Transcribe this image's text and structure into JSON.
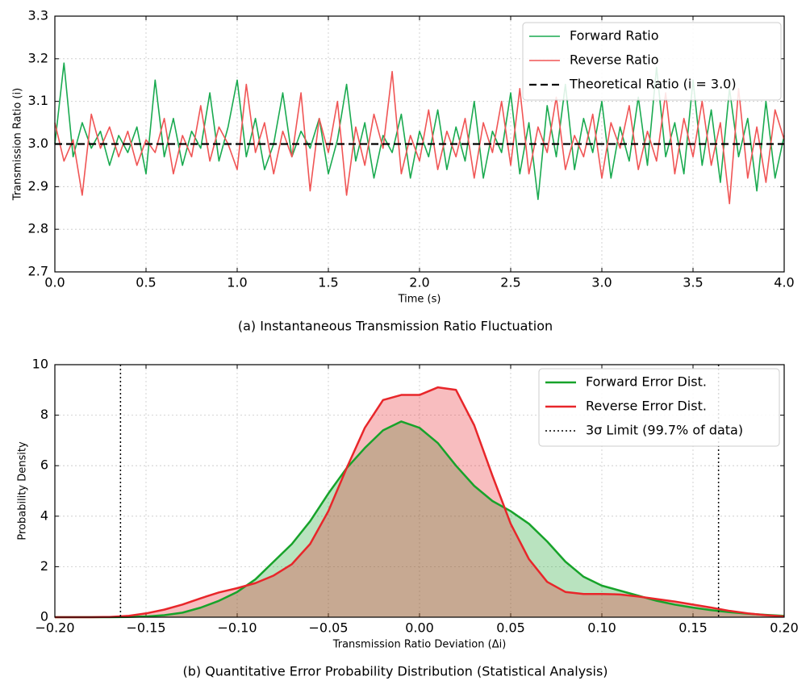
{
  "chart_data": [
    {
      "type": "line",
      "caption": "(a) Instantaneous Transmission Ratio Fluctuation",
      "xlabel": "Time (s)",
      "ylabel": "Transmission Ratio (i)",
      "xlim": [
        0,
        4
      ],
      "ylim": [
        2.7,
        3.3
      ],
      "xticks": [
        {
          "value": 0,
          "label": "0.0"
        },
        0.5,
        {
          "value": 1,
          "label": "1.0"
        },
        1.5,
        {
          "value": 2,
          "label": "2.0"
        },
        2.5,
        {
          "value": 3,
          "label": "3.0"
        },
        3.5,
        {
          "value": 4,
          "label": "4.0"
        }
      ],
      "yticks": [
        2.7,
        2.8,
        2.9,
        {
          "value": 3,
          "label": "3.0"
        },
        3.1,
        3.2,
        3.3
      ],
      "grid": true,
      "legend": "upper right",
      "x": [
        0,
        0.05,
        0.1,
        0.15,
        0.2,
        0.25,
        0.3,
        0.35,
        0.4,
        0.45,
        0.5,
        0.55,
        0.6,
        0.65,
        0.7,
        0.75,
        0.8,
        0.85,
        0.9,
        0.95,
        1,
        1.05,
        1.1,
        1.15,
        1.2,
        1.25,
        1.3,
        1.35,
        1.4,
        1.45,
        1.5,
        1.55,
        1.6,
        1.65,
        1.7,
        1.75,
        1.8,
        1.85,
        1.9,
        1.95,
        2,
        2.05,
        2.1,
        2.15,
        2.2,
        2.25,
        2.3,
        2.35,
        2.4,
        2.45,
        2.5,
        2.55,
        2.6,
        2.65,
        2.7,
        2.75,
        2.8,
        2.85,
        2.9,
        2.95,
        3,
        3.05,
        3.1,
        3.15,
        3.2,
        3.25,
        3.3,
        3.35,
        3.4,
        3.45,
        3.5,
        3.55,
        3.6,
        3.65,
        3.7,
        3.75,
        3.8,
        3.85,
        3.9,
        3.95,
        4
      ],
      "series": [
        {
          "name": "Forward Ratio",
          "color": "#1aaa50",
          "values": [
            3,
            3.19,
            2.97,
            3.05,
            2.99,
            3.03,
            2.95,
            3.02,
            2.98,
            3.04,
            2.93,
            3.15,
            2.97,
            3.06,
            2.95,
            3.03,
            2.99,
            3.12,
            2.96,
            3.04,
            3.15,
            2.97,
            3.06,
            2.94,
            3,
            3.12,
            2.97,
            3.03,
            2.99,
            3.06,
            2.93,
            3.01,
            3.14,
            2.96,
            3.05,
            2.92,
            3.02,
            2.98,
            3.07,
            2.92,
            3.03,
            2.97,
            3.08,
            2.94,
            3.04,
            2.96,
            3.1,
            2.92,
            3.03,
            2.98,
            3.12,
            2.93,
            3.05,
            2.87,
            3.09,
            2.97,
            3.14,
            2.94,
            3.06,
            2.98,
            3.1,
            2.92,
            3.04,
            2.96,
            3.11,
            2.95,
            3.18,
            2.97,
            3.05,
            2.93,
            3.15,
            2.95,
            3.08,
            2.91,
            3.13,
            2.97,
            3.06,
            2.89,
            3.1,
            2.92,
            3.02
          ]
        },
        {
          "name": "Reverse Ratio",
          "color": "#f05555",
          "values": [
            3.05,
            2.96,
            3.01,
            2.88,
            3.07,
            2.99,
            3.04,
            2.97,
            3.03,
            2.95,
            3.01,
            2.98,
            3.06,
            2.93,
            3.02,
            2.97,
            3.09,
            2.96,
            3.04,
            3,
            2.94,
            3.14,
            2.98,
            3.05,
            2.93,
            3.03,
            2.97,
            3.12,
            2.89,
            3.06,
            2.98,
            3.1,
            2.88,
            3.04,
            2.95,
            3.07,
            2.99,
            3.17,
            2.93,
            3.02,
            2.96,
            3.08,
            2.94,
            3.03,
            2.97,
            3.06,
            2.92,
            3.05,
            2.98,
            3.1,
            2.95,
            3.13,
            2.93,
            3.04,
            2.98,
            3.11,
            2.94,
            3.02,
            2.97,
            3.07,
            2.92,
            3.05,
            2.99,
            3.09,
            2.94,
            3.03,
            2.96,
            3.12,
            2.93,
            3.06,
            2.97,
            3.1,
            2.95,
            3.05,
            2.86,
            3.13,
            2.92,
            3.04,
            2.91,
            3.08,
            3.01
          ]
        }
      ],
      "reference_lines": [
        {
          "name": "Theoretical Ratio (i = 3.0)",
          "orientation": "horizontal",
          "values": [
            3
          ],
          "color": "#000000",
          "style": "dashed"
        }
      ]
    },
    {
      "type": "area",
      "caption": "(b) Quantitative Error Probability Distribution (Statistical Analysis)",
      "xlabel": "Transmission Ratio Deviation (Δi)",
      "ylabel": "Probability Density",
      "xlim": [
        -0.2,
        0.2
      ],
      "ylim": [
        0,
        10
      ],
      "xticks": [
        {
          "value": -0.2,
          "label": "−0.20"
        },
        {
          "value": -0.15,
          "label": "−0.15"
        },
        {
          "value": -0.1,
          "label": "−0.10"
        },
        {
          "value": -0.05,
          "label": "−0.05"
        },
        {
          "value": 0,
          "label": "0.00"
        },
        0.05,
        {
          "value": 0.1,
          "label": "0.10"
        },
        0.15,
        {
          "value": 0.2,
          "label": "0.20"
        }
      ],
      "yticks": [
        0,
        2,
        4,
        6,
        8,
        10
      ],
      "grid": true,
      "legend": "upper right",
      "x": [
        -0.2,
        -0.19,
        -0.18,
        -0.17,
        -0.16,
        -0.15,
        -0.14,
        -0.13,
        -0.12,
        -0.11,
        -0.1,
        -0.09,
        -0.08,
        -0.07,
        -0.06,
        -0.05,
        -0.04,
        -0.03,
        -0.02,
        -0.01,
        0,
        0.01,
        0.02,
        0.03,
        0.04,
        0.05,
        0.06,
        0.07,
        0.08,
        0.09,
        0.1,
        0.11,
        0.12,
        0.13,
        0.14,
        0.15,
        0.16,
        0.17,
        0.18,
        0.19,
        0.2
      ],
      "series": [
        {
          "name": "Forward Error Dist.",
          "color": "#17a32a",
          "values": [
            0,
            0,
            0,
            0,
            0.01,
            0.03,
            0.08,
            0.18,
            0.38,
            0.65,
            1,
            1.5,
            2.2,
            2.9,
            3.8,
            4.9,
            5.9,
            6.7,
            7.4,
            7.75,
            7.5,
            6.9,
            6,
            5.2,
            4.6,
            4.2,
            3.7,
            3,
            2.2,
            1.6,
            1.25,
            1.05,
            0.85,
            0.65,
            0.5,
            0.38,
            0.28,
            0.2,
            0.14,
            0.09,
            0.05
          ]
        },
        {
          "name": "Reverse Error Dist.",
          "color": "#e8262a",
          "values": [
            0,
            0,
            0,
            0.01,
            0.05,
            0.15,
            0.3,
            0.5,
            0.75,
            0.98,
            1.15,
            1.35,
            1.65,
            2.1,
            2.9,
            4.2,
            5.9,
            7.5,
            8.6,
            8.8,
            8.8,
            9.1,
            9,
            7.6,
            5.6,
            3.7,
            2.3,
            1.4,
            1,
            0.92,
            0.92,
            0.9,
            0.82,
            0.72,
            0.62,
            0.5,
            0.38,
            0.25,
            0.15,
            0.08,
            0.03
          ]
        }
      ],
      "reference_lines": [
        {
          "name": "3σ Limit (99.7% of data)",
          "orientation": "vertical",
          "values": [
            -0.164,
            0.164
          ],
          "color": "#000000",
          "style": "dotted"
        }
      ]
    }
  ]
}
